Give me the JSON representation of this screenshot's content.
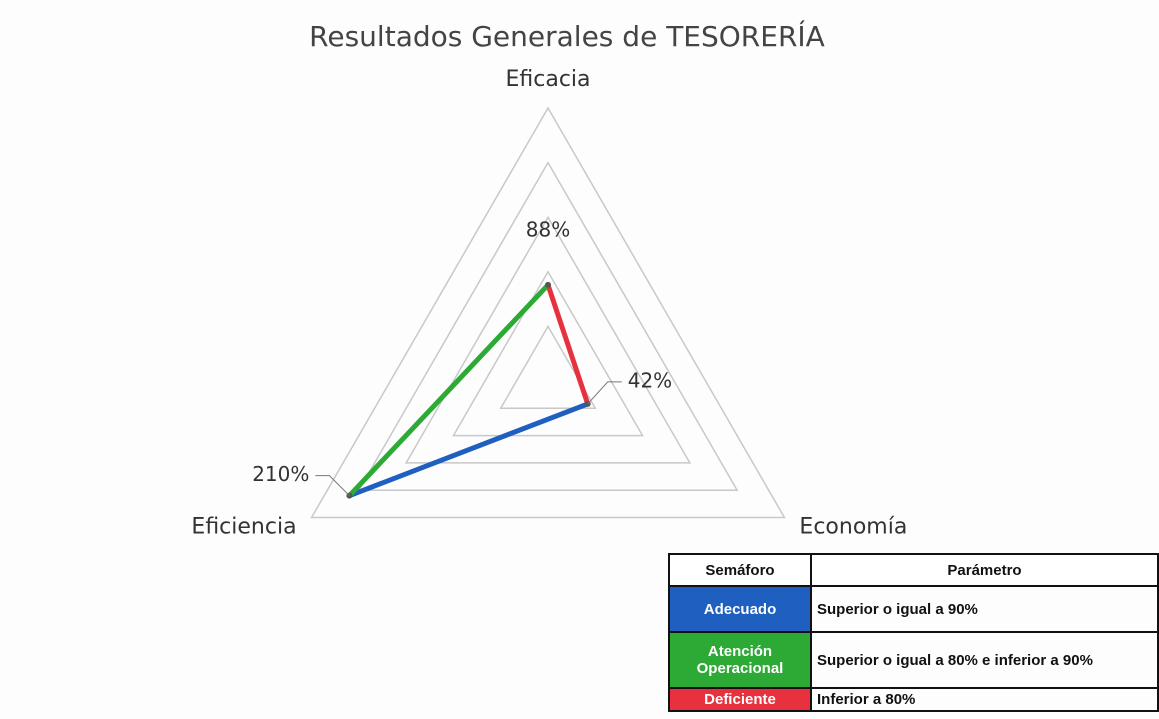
{
  "chart_data": {
    "type": "radar",
    "title": "Resultados Generales de TESORERÍA",
    "categories": [
      "Eficacia",
      "Economía",
      "Eficiencia"
    ],
    "values": [
      88,
      42,
      210
    ],
    "value_labels": [
      "88%",
      "42%",
      "210%"
    ],
    "segment_colors": [
      "#e8313e",
      "#1f5fbf",
      "#2da935"
    ],
    "ylim": [
      0,
      250
    ],
    "yticks": [
      0,
      50,
      100,
      150,
      200,
      250
    ],
    "grid": true,
    "legend_table": {
      "header": [
        "Semáforo",
        "Parámetro"
      ],
      "rows": [
        {
          "label": "Adecuado",
          "color": "#1f5fbf",
          "text": "Superior o igual a 90%"
        },
        {
          "label": "Atención Operacional",
          "color": "#2da935",
          "text": "Superior o igual a 80% e inferior a 90%"
        },
        {
          "label": "Deficiente",
          "color": "#e8313e",
          "text": "Inferior a 80%"
        }
      ]
    }
  }
}
